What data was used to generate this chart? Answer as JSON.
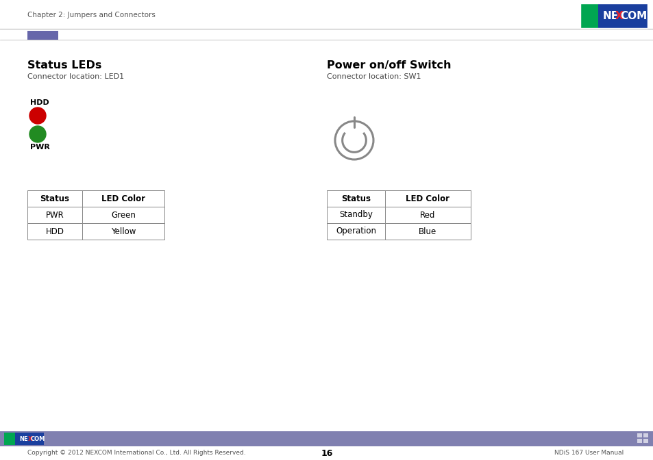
{
  "title_header": "Chapter 2: Jumpers and Connectors",
  "page_number": "16",
  "footer_text": "Copyright © 2012 NEXCOM International Co., Ltd. All Rights Reserved.",
  "footer_right": "NDiS 167 User Manual",
  "section1_title": "Status LEDs",
  "section1_sub": "Connector location: LED1",
  "section2_title": "Power on/off Switch",
  "section2_sub": "Connector location: SW1",
  "led_label_top": "HDD",
  "led_label_bot": "PWR",
  "led_red_color": "#cc0000",
  "led_green_color": "#228B22",
  "table1_headers": [
    "Status",
    "LED Color"
  ],
  "table1_rows": [
    [
      "PWR",
      "Green"
    ],
    [
      "HDD",
      "Yellow"
    ]
  ],
  "table2_headers": [
    "Status",
    "LED Color"
  ],
  "table2_rows": [
    [
      "Standby",
      "Red"
    ],
    [
      "Operation",
      "Blue"
    ]
  ],
  "footer_bar_color": "#8080b0",
  "accent_bar_color": "#6666aa",
  "bg_color": "#ffffff",
  "text_color": "#000000",
  "nexcom_green": "#00a651",
  "nexcom_blue": "#1a3f9e",
  "nexcom_red": "#e8212a",
  "line_color": "#aaaaaa",
  "table_border_color": "#888888",
  "power_btn_color": "#888888"
}
